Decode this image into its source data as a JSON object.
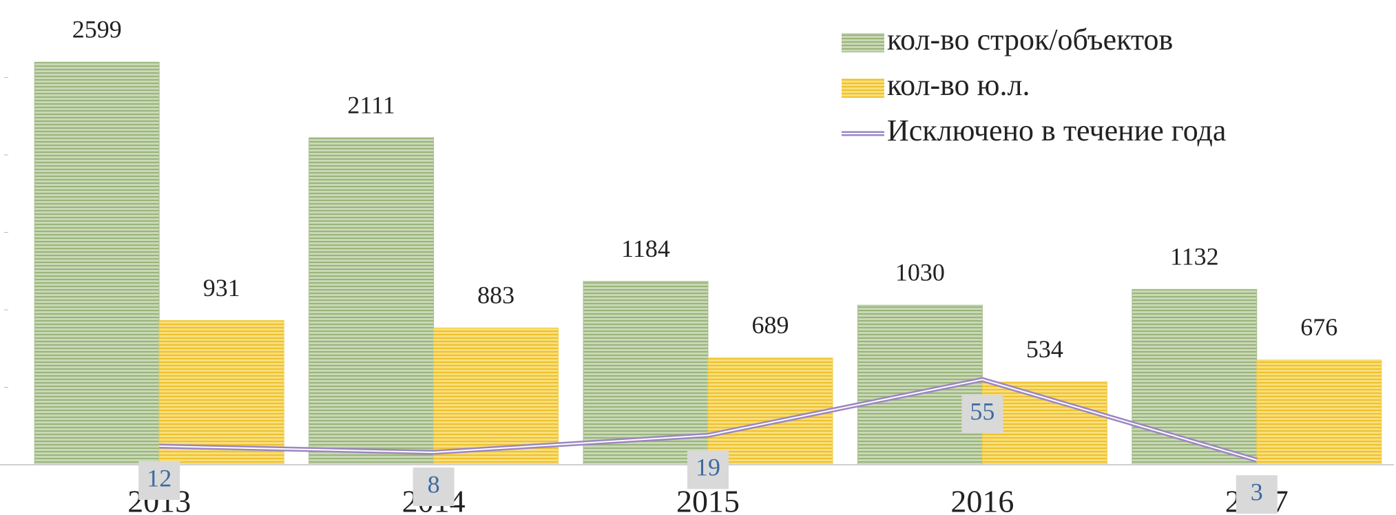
{
  "chart_data": {
    "type": "bar",
    "categories": [
      "2013",
      "2014",
      "2015",
      "2016",
      "2017"
    ],
    "series": [
      {
        "name": "кол-во строк/объектов",
        "color": "#a9c08f",
        "values": [
          2599,
          2111,
          1184,
          1030,
          1132
        ]
      },
      {
        "name": "кол-во ю.л.",
        "color": "#f2cd45",
        "values": [
          931,
          883,
          689,
          534,
          676
        ]
      },
      {
        "name": "Исключено в течение года",
        "color": "#9b86c0",
        "type": "line",
        "axis": "y2",
        "values": [
          12,
          8,
          19,
          55,
          3
        ]
      }
    ],
    "ylim": [
      0,
      3000
    ],
    "yticks": [
      0,
      500,
      1000,
      1500,
      2000,
      2500
    ],
    "y2lim": [
      0,
      300
    ],
    "legend": "top-right"
  }
}
